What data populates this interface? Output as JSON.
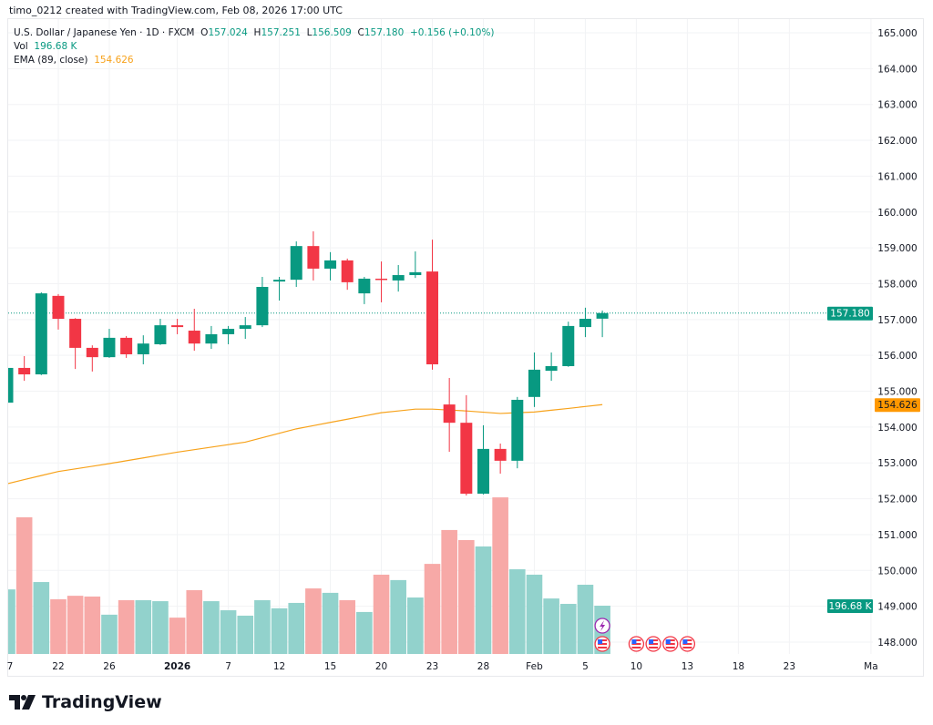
{
  "header": {
    "credit": "timo_0212 created with TradingView.com, Feb 08, 2026 17:00 UTC"
  },
  "legend": {
    "symbol": "U.S. Dollar / Japanese Yen · 1D · FXCM",
    "o_label": "O",
    "o": "157.024",
    "h_label": "H",
    "h": "157.251",
    "l_label": "L",
    "l": "156.509",
    "c_label": "C",
    "c": "157.180",
    "change": "+0.156 (+0.10%)",
    "vol_label": "Vol",
    "vol": "196.68 K",
    "ema_label": "EMA (89, close)",
    "ema": "154.626"
  },
  "price_tags": {
    "last": "157.180",
    "ema": "154.626",
    "volume": "196.68 K"
  },
  "colors": {
    "up": "#089981",
    "down": "#f23645",
    "up_vol": "#92d2cc",
    "down_vol": "#f7a9a7",
    "ema": "#f7a21b"
  },
  "chart_data": {
    "type": "candlestick",
    "title": "U.S. Dollar / Japanese Yen · 1D · FXCM",
    "ylim": [
      148,
      165
    ],
    "y_ticks": [
      "165.000",
      "164.000",
      "163.000",
      "162.000",
      "161.000",
      "160.000",
      "159.000",
      "158.000",
      "157.000",
      "156.000",
      "155.000",
      "154.000",
      "153.000",
      "152.000",
      "151.000",
      "150.000",
      "149.000",
      "148.000"
    ],
    "x_ticks": [
      {
        "label": "7",
        "index": -1
      },
      {
        "label": "22",
        "index": 3
      },
      {
        "label": "26",
        "index": 6
      },
      {
        "label": "2026",
        "index": 10,
        "bold": true
      },
      {
        "label": "7",
        "index": 13
      },
      {
        "label": "12",
        "index": 16
      },
      {
        "label": "15",
        "index": 19
      },
      {
        "label": "20",
        "index": 22
      },
      {
        "label": "23",
        "index": 25
      },
      {
        "label": "28",
        "index": 28
      },
      {
        "label": "Feb",
        "index": 31
      },
      {
        "label": "5",
        "index": 34
      },
      {
        "label": "10",
        "index": 37
      },
      {
        "label": "13",
        "index": 40
      },
      {
        "label": "18",
        "index": 43
      },
      {
        "label": "23",
        "index": 46
      },
      {
        "label": "Ma",
        "index": 50.8
      }
    ],
    "candles": [
      {
        "o": 154.68,
        "h": 155.7,
        "l": 154.6,
        "c": 155.65,
        "v": 263
      },
      {
        "o": 155.65,
        "h": 155.98,
        "l": 155.29,
        "c": 155.47,
        "v": 557
      },
      {
        "o": 155.47,
        "h": 157.76,
        "l": 155.45,
        "c": 157.73,
        "v": 293
      },
      {
        "o": 157.66,
        "h": 157.71,
        "l": 156.72,
        "c": 157.02,
        "v": 223
      },
      {
        "o": 157.02,
        "h": 157.04,
        "l": 155.62,
        "c": 156.21,
        "v": 237
      },
      {
        "o": 156.21,
        "h": 156.28,
        "l": 155.55,
        "c": 155.95,
        "v": 234
      },
      {
        "o": 155.95,
        "h": 156.74,
        "l": 155.93,
        "c": 156.49,
        "v": 160
      },
      {
        "o": 156.49,
        "h": 156.54,
        "l": 155.93,
        "c": 156.03,
        "v": 219
      },
      {
        "o": 156.03,
        "h": 156.56,
        "l": 155.75,
        "c": 156.33,
        "v": 219
      },
      {
        "o": 156.31,
        "h": 157.02,
        "l": 156.29,
        "c": 156.84,
        "v": 215
      },
      {
        "o": 156.84,
        "h": 157.02,
        "l": 156.59,
        "c": 156.79,
        "v": 148
      },
      {
        "o": 156.69,
        "h": 157.3,
        "l": 156.13,
        "c": 156.33,
        "v": 260
      },
      {
        "o": 156.33,
        "h": 156.82,
        "l": 156.18,
        "c": 156.59,
        "v": 215
      },
      {
        "o": 156.59,
        "h": 156.82,
        "l": 156.31,
        "c": 156.74,
        "v": 178
      },
      {
        "o": 156.74,
        "h": 157.07,
        "l": 156.46,
        "c": 156.84,
        "v": 156
      },
      {
        "o": 156.84,
        "h": 158.19,
        "l": 156.79,
        "c": 157.91,
        "v": 219
      },
      {
        "o": 158.06,
        "h": 158.19,
        "l": 157.53,
        "c": 158.11,
        "v": 186
      },
      {
        "o": 158.11,
        "h": 159.18,
        "l": 157.91,
        "c": 159.05,
        "v": 208
      },
      {
        "o": 159.05,
        "h": 159.46,
        "l": 158.09,
        "c": 158.42,
        "v": 267
      },
      {
        "o": 158.42,
        "h": 158.88,
        "l": 158.09,
        "c": 158.65,
        "v": 249
      },
      {
        "o": 158.65,
        "h": 158.7,
        "l": 157.83,
        "c": 158.04,
        "v": 219
      },
      {
        "o": 157.73,
        "h": 158.19,
        "l": 157.43,
        "c": 158.14,
        "v": 171
      },
      {
        "o": 158.14,
        "h": 158.62,
        "l": 157.48,
        "c": 158.12,
        "v": 323
      },
      {
        "o": 158.09,
        "h": 158.52,
        "l": 157.78,
        "c": 158.24,
        "v": 301
      },
      {
        "o": 158.24,
        "h": 158.9,
        "l": 158.16,
        "c": 158.32,
        "v": 230
      },
      {
        "o": 158.34,
        "h": 159.23,
        "l": 155.6,
        "c": 155.75,
        "v": 367
      },
      {
        "o": 154.63,
        "h": 155.37,
        "l": 153.31,
        "c": 154.12,
        "v": 505
      },
      {
        "o": 154.12,
        "h": 154.89,
        "l": 152.09,
        "c": 152.14,
        "v": 464
      },
      {
        "o": 152.14,
        "h": 154.05,
        "l": 152.12,
        "c": 153.39,
        "v": 438
      },
      {
        "o": 153.39,
        "h": 153.54,
        "l": 152.7,
        "c": 153.06,
        "v": 638
      },
      {
        "o": 153.06,
        "h": 154.84,
        "l": 152.85,
        "c": 154.76,
        "v": 345
      },
      {
        "o": 154.84,
        "h": 156.08,
        "l": 154.56,
        "c": 155.6,
        "v": 323
      },
      {
        "o": 155.57,
        "h": 156.08,
        "l": 155.29,
        "c": 155.7,
        "v": 226
      },
      {
        "o": 155.7,
        "h": 156.94,
        "l": 155.68,
        "c": 156.82,
        "v": 204
      },
      {
        "o": 156.79,
        "h": 157.33,
        "l": 156.51,
        "c": 157.02,
        "v": 282
      },
      {
        "o": 157.024,
        "h": 157.251,
        "l": 156.509,
        "c": 157.18,
        "v": 196.68
      }
    ],
    "ema": [
      [
        0,
        152.42
      ],
      [
        3,
        152.76
      ],
      [
        6,
        152.98
      ],
      [
        10,
        153.3
      ],
      [
        14,
        153.58
      ],
      [
        17,
        153.95
      ],
      [
        20,
        154.22
      ],
      [
        22,
        154.4
      ],
      [
        24,
        154.5
      ],
      [
        25,
        154.5
      ],
      [
        27,
        154.45
      ],
      [
        29,
        154.38
      ],
      [
        31,
        154.42
      ],
      [
        33,
        154.52
      ],
      [
        35,
        154.626
      ]
    ],
    "volume_unit": "K",
    "events": [
      {
        "type": "earnings-lightning",
        "index": 35
      },
      {
        "type": "us-flag",
        "index": 35
      },
      {
        "type": "us-flag",
        "index": 37
      },
      {
        "type": "us-flag",
        "index": 38
      },
      {
        "type": "us-flag",
        "index": 39
      },
      {
        "type": "us-flag",
        "index": 40
      }
    ]
  },
  "footer": {
    "logo_text": "TradingView"
  }
}
